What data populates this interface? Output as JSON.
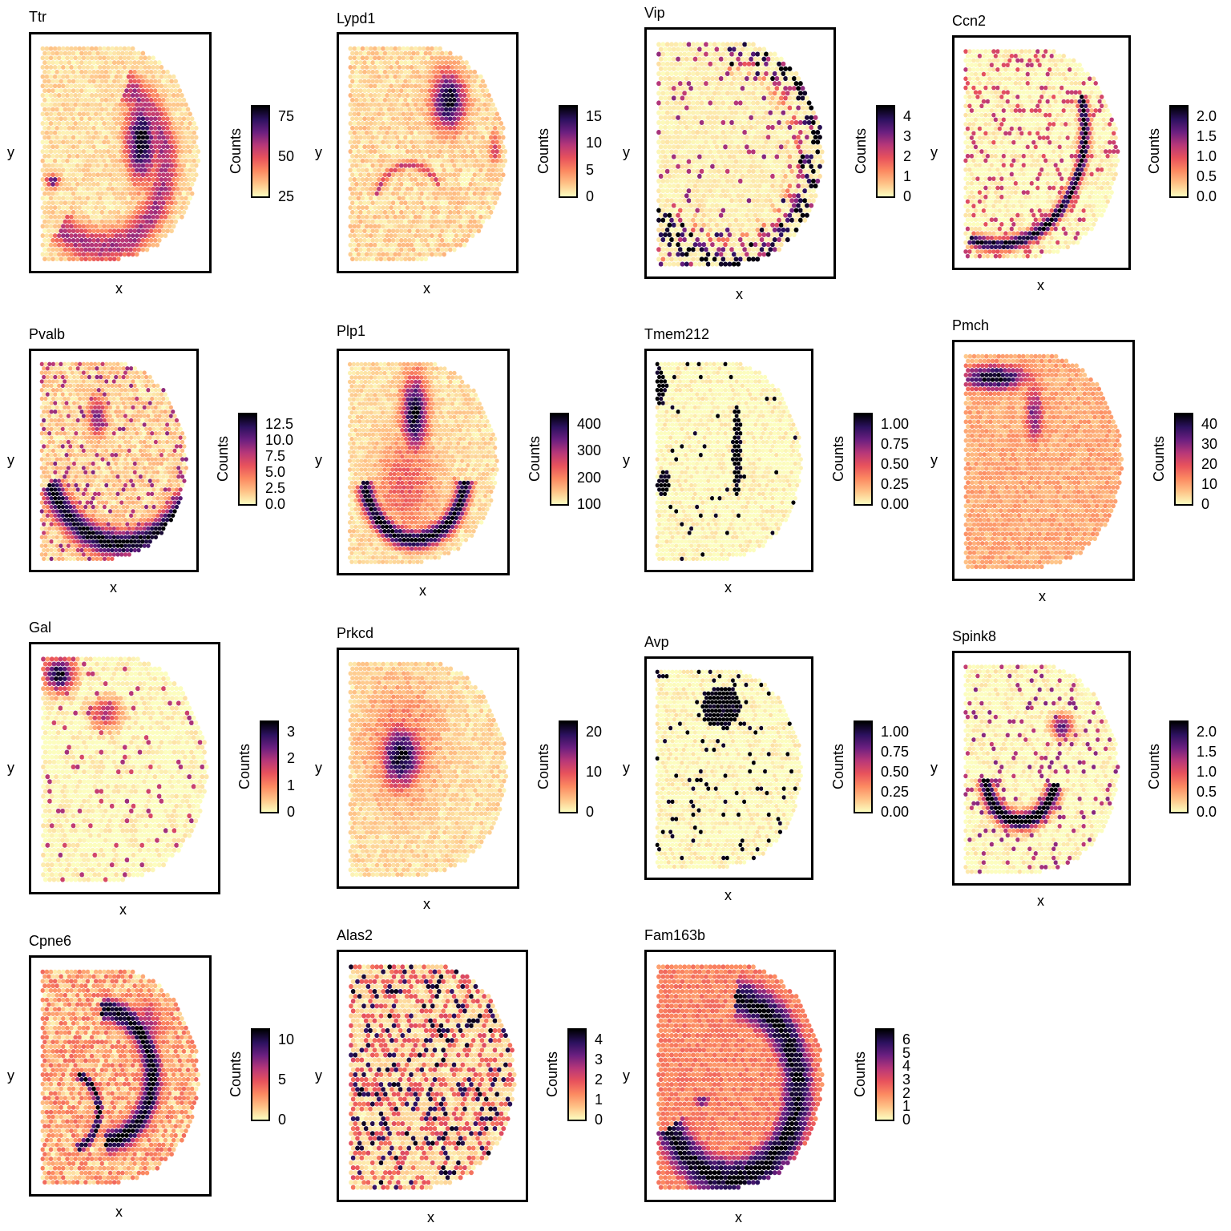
{
  "palette": [
    "#fcfdbf",
    "#fec287",
    "#fc8961",
    "#e8525c",
    "#b73779",
    "#6b1f80",
    "#2c115f",
    "#000004"
  ],
  "axis_labels": {
    "x": "x",
    "y": "y"
  },
  "colorbar_title": "Counts",
  "chart_data": [
    {
      "type": "scatter",
      "title": "Ttr",
      "xlabel": "x",
      "ylabel": "y",
      "legend": "Counts",
      "legend_position": "right",
      "ticks": [
        "75",
        "50",
        "25"
      ],
      "range": [
        0,
        95
      ],
      "pattern": "arc_dense_outer",
      "background": 0.15
    },
    {
      "type": "scatter",
      "title": "Lypd1",
      "xlabel": "x",
      "ylabel": "y",
      "legend": "Counts",
      "legend_position": "right",
      "ticks": [
        "15",
        "10",
        "5",
        "0"
      ],
      "range": [
        0,
        19
      ],
      "pattern": "upper_ellipse",
      "background": 0.18
    },
    {
      "type": "scatter",
      "title": "Vip",
      "xlabel": "x",
      "ylabel": "y",
      "legend": "Counts",
      "legend_position": "right",
      "ticks": [
        "4",
        "3",
        "2",
        "1",
        "0"
      ],
      "range": [
        0,
        4
      ],
      "pattern": "outer_rim_sparse",
      "background": 0.05
    },
    {
      "type": "scatter",
      "title": "Ccn2",
      "xlabel": "x",
      "ylabel": "y",
      "legend": "Counts",
      "legend_position": "right",
      "ticks": [
        "2.0",
        "1.5",
        "1.0",
        "0.5",
        "0.0"
      ],
      "range": [
        0,
        2
      ],
      "pattern": "thin_arc_sparse",
      "background": 0.0
    },
    {
      "type": "scatter",
      "title": "Pvalb",
      "xlabel": "x",
      "ylabel": "y",
      "legend": "Counts",
      "legend_position": "right",
      "ticks": [
        "12.5",
        "10.0",
        "7.5",
        "5.0",
        "2.5",
        "0.0"
      ],
      "range": [
        0,
        13.5
      ],
      "pattern": "lower_arc_dense",
      "background": 0.2
    },
    {
      "type": "scatter",
      "title": "Plp1",
      "xlabel": "x",
      "ylabel": "y",
      "legend": "Counts",
      "legend_position": "right",
      "ticks": [
        "400",
        "300",
        "200",
        "100"
      ],
      "range": [
        0,
        430
      ],
      "pattern": "tract_arc",
      "background": 0.15
    },
    {
      "type": "scatter",
      "title": "Tmem212",
      "xlabel": "x",
      "ylabel": "y",
      "legend": "Counts",
      "legend_position": "right",
      "ticks": [
        "1.00",
        "0.75",
        "0.50",
        "0.25",
        "0.00"
      ],
      "range": [
        0,
        1
      ],
      "pattern": "binary_patches",
      "background": 0.0
    },
    {
      "type": "scatter",
      "title": "Pmch",
      "xlabel": "x",
      "ylabel": "y",
      "legend": "Counts",
      "legend_position": "right",
      "ticks": [
        "40",
        "30",
        "20",
        "10",
        "0"
      ],
      "range": [
        0,
        45
      ],
      "pattern": "upper_left_band",
      "background": 0.12
    },
    {
      "type": "scatter",
      "title": "Gal",
      "xlabel": "x",
      "ylabel": "y",
      "legend": "Counts",
      "legend_position": "right",
      "ticks": [
        "3",
        "2",
        "1",
        "0"
      ],
      "range": [
        0,
        3
      ],
      "pattern": "corner_cluster",
      "background": 0.0
    },
    {
      "type": "scatter",
      "title": "Prkcd",
      "xlabel": "x",
      "ylabel": "y",
      "legend": "Counts",
      "legend_position": "right",
      "ticks": [
        "20",
        "10",
        "0"
      ],
      "range": [
        0,
        29
      ],
      "pattern": "center_left_blob",
      "background": 0.15
    },
    {
      "type": "scatter",
      "title": "Avp",
      "xlabel": "x",
      "ylabel": "y",
      "legend": "Counts",
      "legend_position": "right",
      "ticks": [
        "1.00",
        "0.75",
        "0.50",
        "0.25",
        "0.00"
      ],
      "range": [
        0,
        1
      ],
      "pattern": "binary_top",
      "background": 0.0
    },
    {
      "type": "scatter",
      "title": "Spink8",
      "xlabel": "x",
      "ylabel": "y",
      "legend": "Counts",
      "legend_position": "right",
      "ticks": [
        "2.0",
        "1.5",
        "1.0",
        "0.5",
        "0.0"
      ],
      "range": [
        0,
        2
      ],
      "pattern": "lower_hook",
      "background": 0.0
    },
    {
      "type": "scatter",
      "title": "Cpne6",
      "xlabel": "x",
      "ylabel": "y",
      "legend": "Counts",
      "legend_position": "right",
      "ticks": [
        "10",
        "5",
        "0"
      ],
      "range": [
        0,
        14
      ],
      "pattern": "hippocampus",
      "background": 0.22
    },
    {
      "type": "scatter",
      "title": "Alas2",
      "xlabel": "x",
      "ylabel": "y",
      "legend": "Counts",
      "legend_position": "right",
      "ticks": [
        "4",
        "3",
        "2",
        "1",
        "0"
      ],
      "range": [
        0,
        4.2
      ],
      "pattern": "random_scatter",
      "background": 0.1
    },
    {
      "type": "scatter",
      "title": "Fam163b",
      "xlabel": "x",
      "ylabel": "y",
      "legend": "Counts",
      "legend_position": "right",
      "ticks": [
        "6",
        "5",
        "4",
        "3",
        "2",
        "1",
        "0"
      ],
      "range": [
        0,
        6.3
      ],
      "pattern": "broad_arc",
      "background": 0.25
    }
  ]
}
